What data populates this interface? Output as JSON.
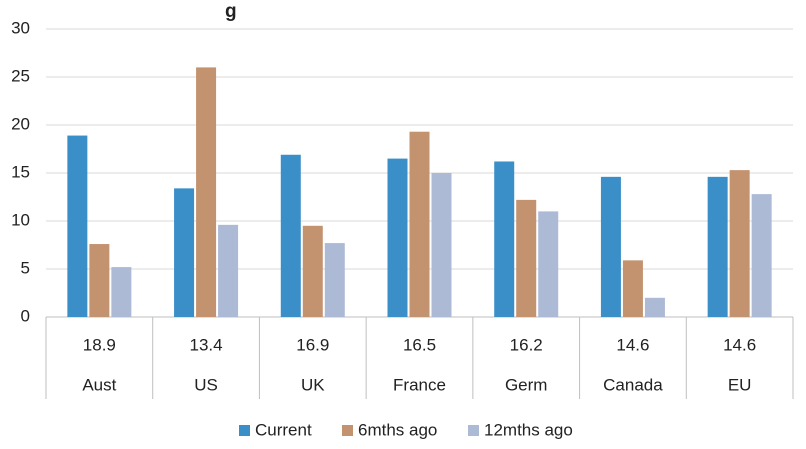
{
  "chart_data": {
    "type": "bar",
    "title": "…g… (…)",
    "title_visible_fragment": "g",
    "categories": [
      "Aust",
      "US",
      "UK",
      "France",
      "Germ",
      "Canada",
      "EU"
    ],
    "table_values": [
      "18.9",
      "13.4",
      "16.9",
      "16.5",
      "16.2",
      "14.6",
      "14.6"
    ],
    "series": [
      {
        "name": "Current",
        "color": "#3a8fc9",
        "values": [
          18.9,
          13.4,
          16.9,
          16.5,
          16.2,
          14.6,
          14.6
        ]
      },
      {
        "name": "6mths ago",
        "color": "#c39370",
        "values": [
          7.6,
          26.0,
          9.5,
          19.3,
          12.2,
          5.9,
          15.3
        ]
      },
      {
        "name": "12mths ago",
        "color": "#adbad6",
        "values": [
          5.2,
          9.6,
          7.7,
          15.0,
          11.0,
          2.0,
          12.8
        ]
      }
    ],
    "ylim": [
      0,
      30
    ],
    "yticks": [
      0,
      5,
      10,
      15,
      20,
      25,
      30
    ],
    "grid": true,
    "legend": "bottom"
  }
}
